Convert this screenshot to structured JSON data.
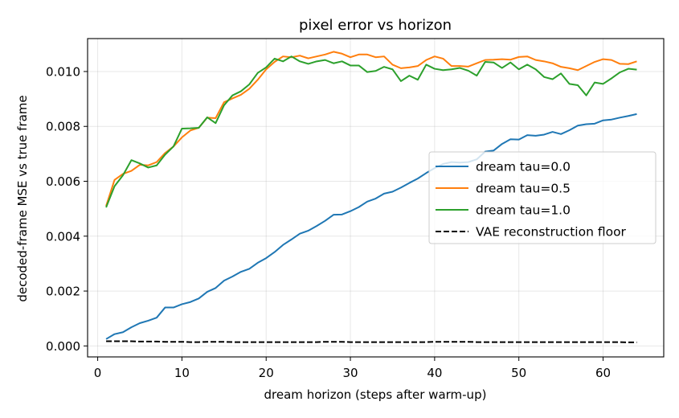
{
  "chart_data": {
    "type": "line",
    "title": "pixel error vs horizon",
    "xlabel": "dream horizon (steps after warm-up)",
    "ylabel": "decoded-frame MSE vs true frame",
    "xlim": [
      -1.2,
      67.2
    ],
    "ylim": [
      -0.0004,
      0.0112
    ],
    "xticks": [
      0,
      10,
      20,
      30,
      40,
      50,
      60
    ],
    "yticks": [
      0.0,
      0.002,
      0.004,
      0.006,
      0.008,
      0.01
    ],
    "ytick_labels": [
      "0.000",
      "0.002",
      "0.004",
      "0.006",
      "0.008",
      "0.010"
    ],
    "grid": true,
    "legend_position": "center-right",
    "x": [
      1,
      2,
      3,
      4,
      5,
      6,
      7,
      8,
      9,
      10,
      11,
      12,
      13,
      14,
      15,
      16,
      17,
      18,
      19,
      20,
      21,
      22,
      23,
      24,
      25,
      26,
      27,
      28,
      29,
      30,
      31,
      32,
      33,
      34,
      35,
      36,
      37,
      38,
      39,
      40,
      41,
      42,
      43,
      44,
      45,
      46,
      47,
      48,
      49,
      50,
      51,
      52,
      53,
      54,
      55,
      56,
      57,
      58,
      59,
      60,
      61,
      62,
      63,
      64
    ],
    "series": [
      {
        "name": "dream tau=0.0",
        "color": "#1f77b4",
        "style": "solid",
        "values": [
          0.00025,
          0.00043,
          0.0005,
          0.00068,
          0.00083,
          0.00092,
          0.00103,
          0.0014,
          0.0014,
          0.00152,
          0.0016,
          0.00173,
          0.00197,
          0.00211,
          0.00238,
          0.00253,
          0.0027,
          0.00281,
          0.00303,
          0.0032,
          0.00342,
          0.00368,
          0.00388,
          0.00409,
          0.0042,
          0.00437,
          0.00456,
          0.00478,
          0.00479,
          0.00491,
          0.00506,
          0.00526,
          0.00537,
          0.00555,
          0.00562,
          0.00577,
          0.00594,
          0.0061,
          0.0063,
          0.00648,
          0.00663,
          0.0067,
          0.00668,
          0.0067,
          0.0068,
          0.00708,
          0.00712,
          0.00736,
          0.00753,
          0.00752,
          0.00768,
          0.00766,
          0.0077,
          0.0078,
          0.00772,
          0.00786,
          0.00803,
          0.00808,
          0.0081,
          0.00822,
          0.00825,
          0.00832,
          0.00838,
          0.00845
        ]
      },
      {
        "name": "dream tau=0.5",
        "color": "#ff7f0e",
        "style": "solid",
        "values": [
          0.0051,
          0.00605,
          0.00627,
          0.00638,
          0.0066,
          0.00658,
          0.0067,
          0.00703,
          0.00727,
          0.0076,
          0.00785,
          0.00795,
          0.00832,
          0.0083,
          0.00888,
          0.00902,
          0.00915,
          0.00937,
          0.0097,
          0.01008,
          0.01035,
          0.01055,
          0.01052,
          0.01058,
          0.01048,
          0.01055,
          0.01062,
          0.01072,
          0.01065,
          0.01052,
          0.01062,
          0.01062,
          0.01052,
          0.01055,
          0.01025,
          0.01012,
          0.01015,
          0.0102,
          0.01042,
          0.01055,
          0.01047,
          0.0102,
          0.0102,
          0.01018,
          0.0103,
          0.01042,
          0.01043,
          0.01045,
          0.01043,
          0.01053,
          0.01055,
          0.01042,
          0.01037,
          0.0103,
          0.01017,
          0.01012,
          0.01005,
          0.0102,
          0.01035,
          0.01045,
          0.01042,
          0.01028,
          0.01027,
          0.01037
        ]
      },
      {
        "name": "dream tau=1.0",
        "color": "#2ca02c",
        "style": "solid",
        "values": [
          0.00505,
          0.00582,
          0.00622,
          0.00677,
          0.00665,
          0.0065,
          0.00658,
          0.00697,
          0.00727,
          0.00792,
          0.00793,
          0.00795,
          0.00833,
          0.00812,
          0.00877,
          0.00913,
          0.00928,
          0.00953,
          0.00995,
          0.01015,
          0.01047,
          0.01037,
          0.01055,
          0.01037,
          0.01028,
          0.01037,
          0.01042,
          0.0103,
          0.01037,
          0.01022,
          0.01022,
          0.00998,
          0.01002,
          0.01017,
          0.01008,
          0.00965,
          0.00985,
          0.0097,
          0.01025,
          0.0101,
          0.01005,
          0.01008,
          0.01013,
          0.01003,
          0.00985,
          0.01035,
          0.01033,
          0.01013,
          0.01033,
          0.01008,
          0.01025,
          0.01008,
          0.0098,
          0.00972,
          0.00993,
          0.00955,
          0.0095,
          0.00913,
          0.0096,
          0.00955,
          0.00975,
          0.00997,
          0.0101,
          0.01007
        ]
      },
      {
        "name": "VAE reconstruction floor",
        "color": "#000000",
        "style": "dashed",
        "values": [
          0.00017,
          0.00017,
          0.00017,
          0.00017,
          0.00016,
          0.00016,
          0.00016,
          0.00015,
          0.00015,
          0.00015,
          0.00014,
          0.00014,
          0.00015,
          0.00015,
          0.00015,
          0.00014,
          0.00014,
          0.00014,
          0.00014,
          0.00014,
          0.00014,
          0.00014,
          0.00014,
          0.00014,
          0.00014,
          0.00014,
          0.00015,
          0.00015,
          0.00015,
          0.00014,
          0.00014,
          0.00014,
          0.00014,
          0.00014,
          0.00014,
          0.00014,
          0.00014,
          0.00014,
          0.00014,
          0.00015,
          0.00015,
          0.00015,
          0.00015,
          0.00015,
          0.00014,
          0.00014,
          0.00014,
          0.00014,
          0.00014,
          0.00014,
          0.00014,
          0.00014,
          0.00014,
          0.00014,
          0.00014,
          0.00014,
          0.00014,
          0.00014,
          0.00014,
          0.00014,
          0.00014,
          0.00014,
          0.00013,
          0.00013
        ]
      }
    ]
  }
}
